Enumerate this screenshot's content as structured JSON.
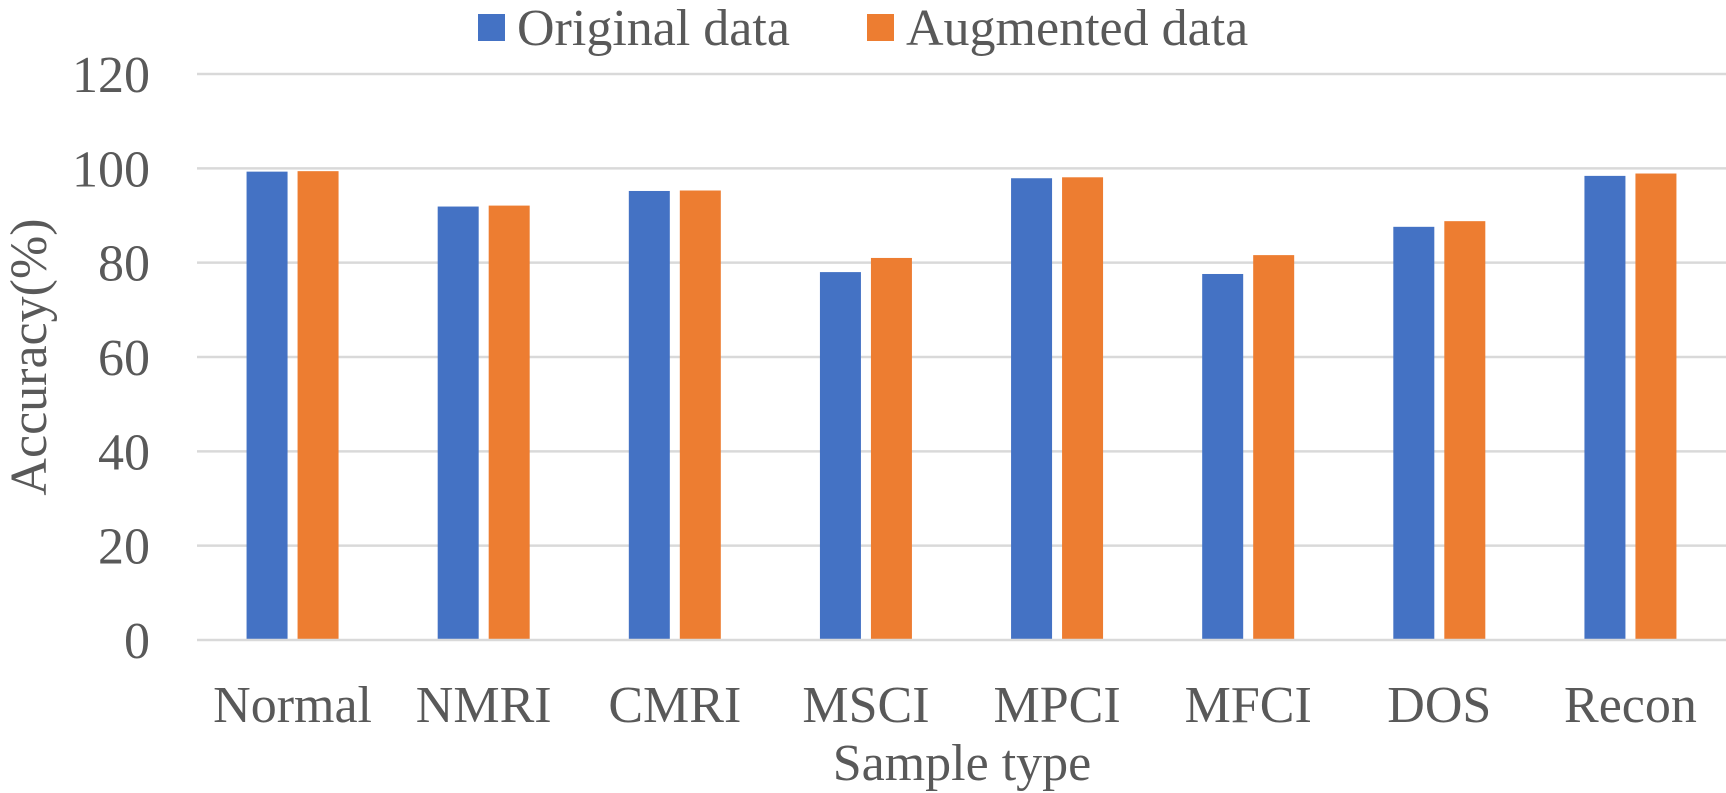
{
  "chart_data": {
    "type": "bar",
    "title": "",
    "xlabel": "Sample type",
    "ylabel": "Accuracy(%)",
    "ylim": [
      0,
      120
    ],
    "yticks": [
      "0",
      "20",
      "40",
      "60",
      "80",
      "100",
      "120"
    ],
    "grid": true,
    "legend_position": "top-center",
    "categories": [
      "Normal",
      "NMRI",
      "CMRI",
      "MSCI",
      "MPCI",
      "MFCI",
      "DOS",
      "Recon"
    ],
    "series": [
      {
        "name": "Original data",
        "color": "#4472C4",
        "values": [
          99.3,
          91.9,
          95.2,
          78.0,
          97.9,
          77.6,
          87.6,
          98.4
        ]
      },
      {
        "name": "Augmented data",
        "color": "#ED7D31",
        "values": [
          99.4,
          92.1,
          95.3,
          81.0,
          98.1,
          81.6,
          88.8,
          98.9
        ]
      }
    ]
  }
}
